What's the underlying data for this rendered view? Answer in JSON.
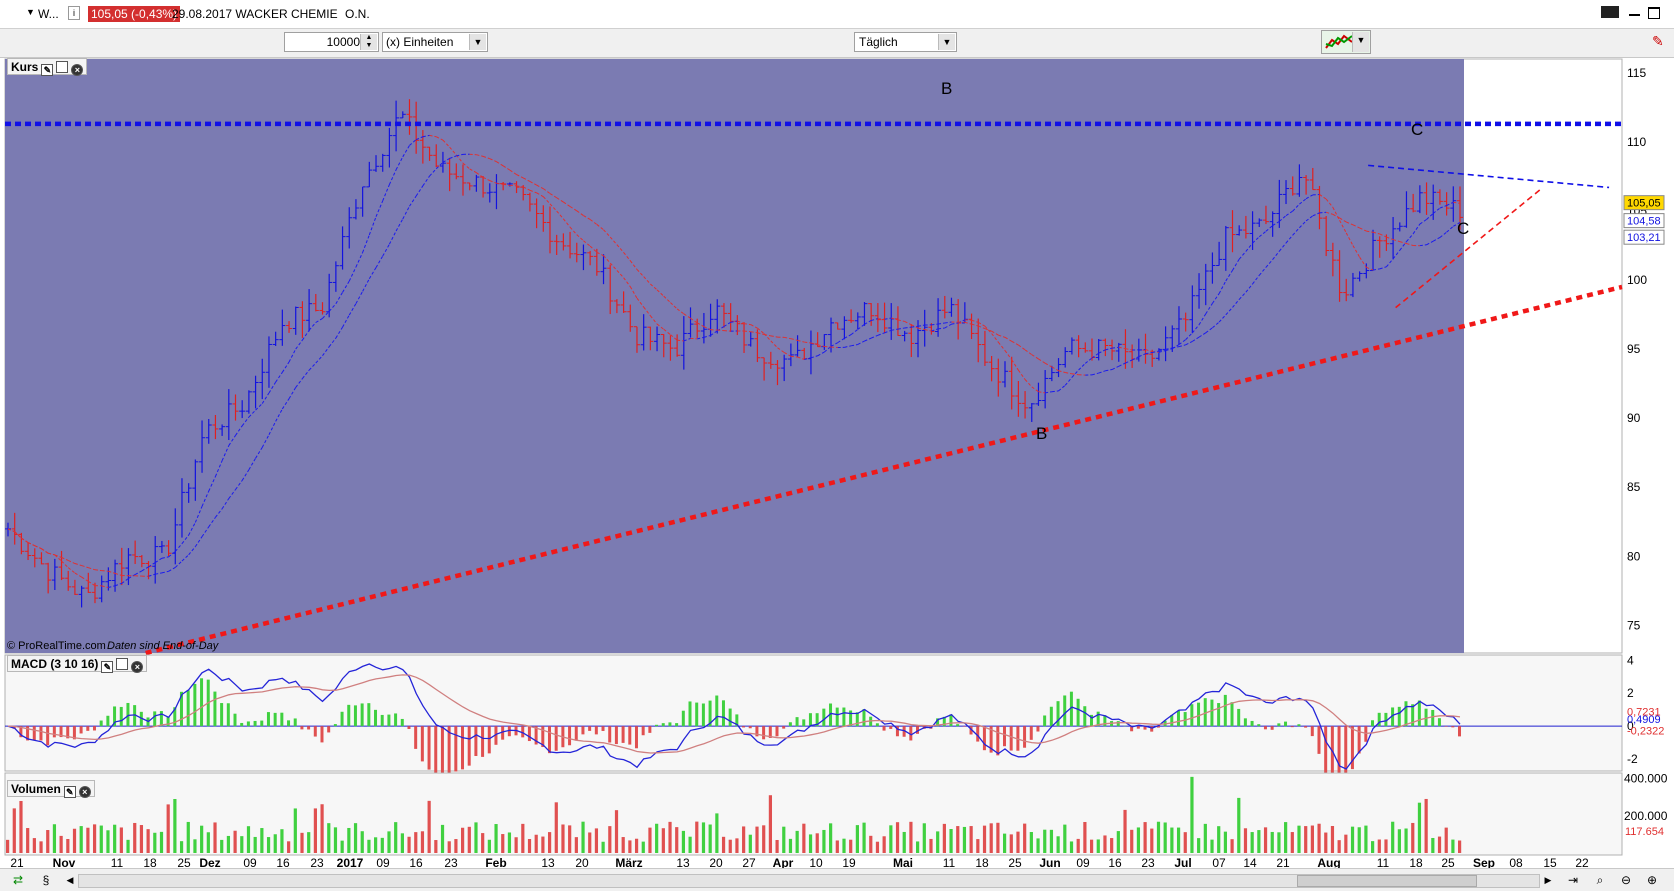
{
  "titlebar": {
    "symbol": "W...",
    "price_badge": "105,05 (-0,43%)",
    "date_name": "29.08.2017 WACKER CHEMIE",
    "suffix": "O.N."
  },
  "toolbar": {
    "quantity": "10000",
    "units": "(x) Einheiten",
    "interval": "Täglich"
  },
  "panels": {
    "price_label": "Kurs",
    "macd_label": "MACD (3 10 16)",
    "volume_label": "Volumen",
    "copyright": "© ProRealTime.com",
    "eod_note": "Daten sind End-of-Day"
  },
  "annotations": {
    "b_top": "B",
    "b_bottom": "B",
    "c_top": "C",
    "c_right": "C"
  },
  "price_axis": {
    "ticks": [
      "115",
      "110",
      "105",
      "100",
      "95",
      "90",
      "85",
      "80",
      "75"
    ],
    "last": "105,05",
    "ma1": "104,58",
    "ma2": "103,21"
  },
  "macd_axis": {
    "ticks": [
      "4",
      "2",
      "0",
      "-2"
    ],
    "v1": "0,7231",
    "v2": "0,4909",
    "v3": "-0,2322"
  },
  "volume_axis": {
    "ticks": [
      "400.000",
      "200.000"
    ],
    "last": "117.654"
  },
  "date_axis": [
    "21",
    "Nov",
    "11",
    "18",
    "25",
    "Dez",
    "09",
    "16",
    "23",
    "2017",
    "09",
    "16",
    "23",
    "Feb",
    "13",
    "20",
    "März",
    "13",
    "20",
    "27",
    "Apr",
    "10",
    "19",
    "Mai",
    "11",
    "18",
    "25",
    "Jun",
    "09",
    "16",
    "23",
    "Jul",
    "07",
    "14",
    "21",
    "Aug",
    "11",
    "18",
    "25",
    "Sep",
    "08",
    "15",
    "22"
  ],
  "colors": {
    "chart_bg": "#7b7bb2",
    "up": "#1212e0",
    "down": "#e02020",
    "macd_green": "#40d040",
    "macd_red": "#e05050"
  },
  "chart_data": [
    {
      "type": "ohlc",
      "title": "Kurs",
      "ylim": [
        73,
        116
      ],
      "series_close_anchors": [
        {
          "x": "Okt 21",
          "y": 82
        },
        {
          "x": "Nov 04",
          "y": 79
        },
        {
          "x": "Nov 11",
          "y": 77
        },
        {
          "x": "Nov 25",
          "y": 80
        },
        {
          "x": "Dez 02",
          "y": 80
        },
        {
          "x": "Dez 09",
          "y": 89
        },
        {
          "x": "Dez 16",
          "y": 91
        },
        {
          "x": "Dez 23",
          "y": 97
        },
        {
          "x": "Jan 02",
          "y": 98
        },
        {
          "x": "Jan 16",
          "y": 107
        },
        {
          "x": "Jan 26",
          "y": 112
        },
        {
          "x": "Feb 01",
          "y": 108
        },
        {
          "x": "Feb 13",
          "y": 107
        },
        {
          "x": "Feb 20",
          "y": 106
        },
        {
          "x": "Mär 01",
          "y": 103
        },
        {
          "x": "Mär 13",
          "y": 101
        },
        {
          "x": "Mär 20",
          "y": 96
        },
        {
          "x": "Mär 27",
          "y": 95
        },
        {
          "x": "Apr 10",
          "y": 98
        },
        {
          "x": "Apr 19",
          "y": 95
        },
        {
          "x": "Mai 01",
          "y": 94
        },
        {
          "x": "Mai 11",
          "y": 97
        },
        {
          "x": "Mai 18",
          "y": 98
        },
        {
          "x": "Mai 25",
          "y": 96
        },
        {
          "x": "Jun 01",
          "y": 98
        },
        {
          "x": "Jun 09",
          "y": 94
        },
        {
          "x": "Jun 16",
          "y": 91
        },
        {
          "x": "Jun 23",
          "y": 95
        },
        {
          "x": "Jul 01",
          "y": 95
        },
        {
          "x": "Jul 07",
          "y": 94
        },
        {
          "x": "Jul 14",
          "y": 97
        },
        {
          "x": "Jul 21",
          "y": 103
        },
        {
          "x": "Aug 01",
          "y": 104
        },
        {
          "x": "Aug 04",
          "y": 108
        },
        {
          "x": "Aug 11",
          "y": 99
        },
        {
          "x": "Aug 18",
          "y": 103
        },
        {
          "x": "Aug 25",
          "y": 106
        },
        {
          "x": "Aug 29",
          "y": 105.05
        }
      ],
      "trendlines": [
        {
          "name": "B resistance",
          "from": [
            0,
            111.3
          ],
          "to": [
            1,
            111.3
          ],
          "color": "blue",
          "style": "dashed"
        },
        {
          "name": "B support",
          "from": [
            0.087,
            73
          ],
          "to": [
            1,
            99.5
          ],
          "color": "red",
          "style": "dotted"
        },
        {
          "name": "C upper",
          "from": [
            0.843,
            108.3
          ],
          "to": [
            0.992,
            106.7
          ],
          "color": "blue",
          "style": "dashed"
        },
        {
          "name": "C lower",
          "from": [
            0.86,
            98
          ],
          "to": [
            0.95,
            106.6
          ],
          "color": "red",
          "style": "dashed"
        }
      ]
    },
    {
      "type": "bar",
      "title": "MACD (3 10 16)",
      "ylim": [
        -2.6,
        4.2
      ]
    },
    {
      "type": "bar",
      "title": "Volumen",
      "ylim": [
        0,
        420000
      ]
    }
  ]
}
